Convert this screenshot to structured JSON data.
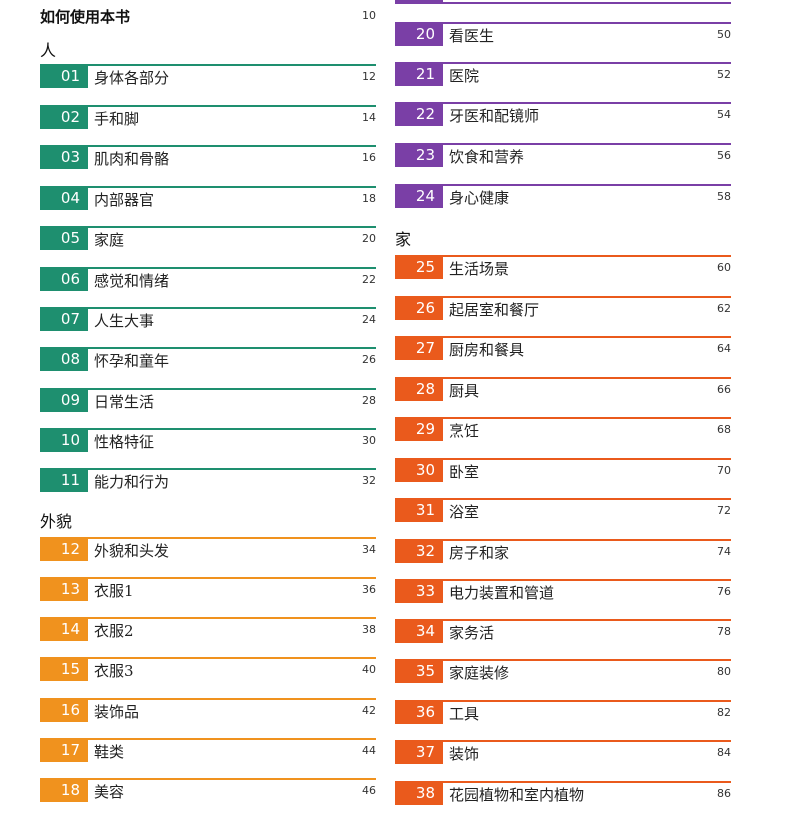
{
  "intro": {
    "title": "如何使用本书",
    "page": "10"
  },
  "sections": {
    "people": "人",
    "appearance": "外貌",
    "home": "家"
  },
  "left_entries": [
    {
      "num": "01",
      "title": "身体各部分",
      "page": "12",
      "color": "#1e8f6f"
    },
    {
      "num": "02",
      "title": "手和脚",
      "page": "14",
      "color": "#1e8f6f"
    },
    {
      "num": "03",
      "title": "肌肉和骨骼",
      "page": "16",
      "color": "#1e8f6f"
    },
    {
      "num": "04",
      "title": "内部器官",
      "page": "18",
      "color": "#1e8f6f"
    },
    {
      "num": "05",
      "title": "家庭",
      "page": "20",
      "color": "#1e8f6f"
    },
    {
      "num": "06",
      "title": "感觉和情绪",
      "page": "22",
      "color": "#1e8f6f"
    },
    {
      "num": "07",
      "title": "人生大事",
      "page": "24",
      "color": "#1e8f6f"
    },
    {
      "num": "08",
      "title": "怀孕和童年",
      "page": "26",
      "color": "#1e8f6f"
    },
    {
      "num": "09",
      "title": "日常生活",
      "page": "28",
      "color": "#1e8f6f"
    },
    {
      "num": "10",
      "title": "性格特征",
      "page": "30",
      "color": "#1e8f6f"
    },
    {
      "num": "11",
      "title": "能力和行为",
      "page": "32",
      "color": "#1e8f6f"
    },
    {
      "num": "12",
      "title": "外貌和头发",
      "page": "34",
      "color": "#f0921e"
    },
    {
      "num": "13",
      "title": "衣服1",
      "page": "36",
      "color": "#f0921e"
    },
    {
      "num": "14",
      "title": "衣服2",
      "page": "38",
      "color": "#f0921e"
    },
    {
      "num": "15",
      "title": "衣服3",
      "page": "40",
      "color": "#f0921e"
    },
    {
      "num": "16",
      "title": "装饰品",
      "page": "42",
      "color": "#f0921e"
    },
    {
      "num": "17",
      "title": "鞋类",
      "page": "44",
      "color": "#f0921e"
    },
    {
      "num": "18",
      "title": "美容",
      "page": "46",
      "color": "#f0921e"
    }
  ],
  "right_entries": [
    {
      "num": "20",
      "title": "看医生",
      "page": "50",
      "color": "#7a3fa6"
    },
    {
      "num": "21",
      "title": "医院",
      "page": "52",
      "color": "#7a3fa6"
    },
    {
      "num": "22",
      "title": "牙医和配镜师",
      "page": "54",
      "color": "#7a3fa6"
    },
    {
      "num": "23",
      "title": "饮食和营养",
      "page": "56",
      "color": "#7a3fa6"
    },
    {
      "num": "24",
      "title": "身心健康",
      "page": "58",
      "color": "#7a3fa6"
    },
    {
      "num": "25",
      "title": "生活场景",
      "page": "60",
      "color": "#ea5a1c"
    },
    {
      "num": "26",
      "title": "起居室和餐厅",
      "page": "62",
      "color": "#ea5a1c"
    },
    {
      "num": "27",
      "title": "厨房和餐具",
      "page": "64",
      "color": "#ea5a1c"
    },
    {
      "num": "28",
      "title": "厨具",
      "page": "66",
      "color": "#ea5a1c"
    },
    {
      "num": "29",
      "title": "烹饪",
      "page": "68",
      "color": "#ea5a1c"
    },
    {
      "num": "30",
      "title": "卧室",
      "page": "70",
      "color": "#ea5a1c"
    },
    {
      "num": "31",
      "title": "浴室",
      "page": "72",
      "color": "#ea5a1c"
    },
    {
      "num": "32",
      "title": "房子和家",
      "page": "74",
      "color": "#ea5a1c"
    },
    {
      "num": "33",
      "title": "电力装置和管道",
      "page": "76",
      "color": "#ea5a1c"
    },
    {
      "num": "34",
      "title": "家务活",
      "page": "78",
      "color": "#ea5a1c"
    },
    {
      "num": "35",
      "title": "家庭装修",
      "page": "80",
      "color": "#ea5a1c"
    },
    {
      "num": "36",
      "title": "工具",
      "page": "82",
      "color": "#ea5a1c"
    },
    {
      "num": "37",
      "title": "装饰",
      "page": "84",
      "color": "#ea5a1c"
    },
    {
      "num": "38",
      "title": "花园植物和室内植物",
      "page": "86",
      "color": "#ea5a1c"
    }
  ]
}
